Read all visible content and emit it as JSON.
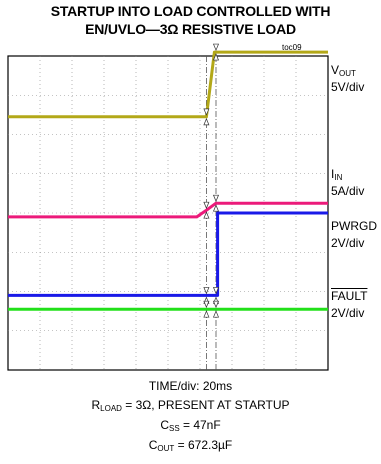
{
  "header": {
    "title_line1": "STARTUP INTO LOAD CONTROLLED WITH",
    "title_line2": "EN/UVLO—3Ω RESISTIVE LOAD",
    "figure_id": "toc09"
  },
  "labels": {
    "vout": {
      "main": "V",
      "sub": "OUT",
      "scale": "5V/div"
    },
    "iin": {
      "main": "I",
      "sub": "IN",
      "scale": "5A/div"
    },
    "pwrgd": {
      "main": "PWRGD",
      "scale": "2V/div"
    },
    "fault": {
      "main": "FAULT",
      "scale": "2V/div"
    }
  },
  "captions": {
    "time": "TIME/div: 20ms",
    "rload_prefix": "R",
    "rload_sub": "LOAD",
    "rload_rest": " = 3Ω, PRESENT AT STARTUP",
    "css_prefix": "C",
    "css_sub": "SS",
    "css_rest": " = 47nF",
    "cout_prefix": "C",
    "cout_sub": "OUT",
    "cout_rest": " = 672.3µF"
  },
  "chart_data": {
    "type": "line",
    "grid": true,
    "x_divisions": 10,
    "y_divisions": 8,
    "x_range": [
      0,
      10
    ],
    "y_range": [
      0,
      8
    ],
    "cursors_x": [
      6.2,
      6.5
    ],
    "series": [
      {
        "name": "VOUT",
        "color": "#b3a818",
        "x": [
          0,
          6.2,
          6.45,
          10
        ],
        "y": [
          6.45,
          6.45,
          8.1,
          8.1
        ]
      },
      {
        "name": "IIN",
        "color": "#ec1a7a",
        "x": [
          0,
          5.9,
          6.25,
          6.5,
          10
        ],
        "y": [
          3.9,
          3.9,
          4.1,
          4.25,
          4.25
        ]
      },
      {
        "name": "PWRGD",
        "color": "#1a1ae8",
        "x": [
          0,
          6.55,
          6.55,
          10
        ],
        "y": [
          1.9,
          1.9,
          4.0,
          4.0
        ]
      },
      {
        "name": "FAULT",
        "color": "#22e01a",
        "x": [
          0,
          10
        ],
        "y": [
          1.55,
          1.55
        ]
      }
    ]
  }
}
